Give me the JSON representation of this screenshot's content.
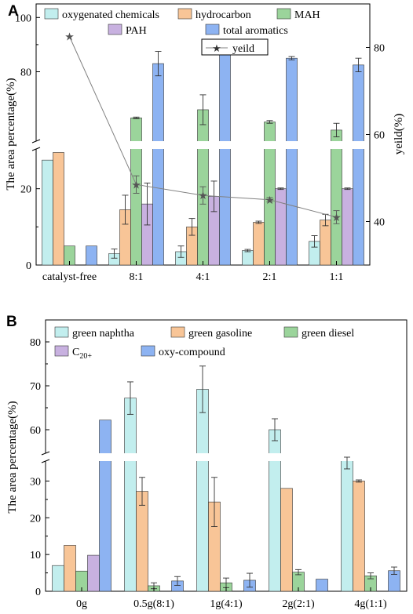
{
  "colors": {
    "oxygenated": "#c2eeee",
    "hydrocarbon": "#f8c597",
    "mah": "#9bd49b",
    "pah": "#c8b1e0",
    "aromatics": "#8db3f2",
    "naphtha": "#c2eeee",
    "gasoline": "#f8c597",
    "diesel": "#9bd49b",
    "c20": "#c8b1e0",
    "oxy": "#8db3f2",
    "yield_line": "#808080"
  },
  "chart_data": [
    {
      "type": "bar",
      "panel_label": "A",
      "ylabel": "The area percentage(%)",
      "y2label": "yeild(%)",
      "categories": [
        "catalyst-free",
        "8:1",
        "4:1",
        "2:1",
        "1:1"
      ],
      "ylim_lower": [
        0,
        30
      ],
      "ylim_upper": [
        55,
        105
      ],
      "yticks": [
        "0",
        "20",
        "80",
        "100"
      ],
      "y2lim": [
        30,
        90
      ],
      "y2ticks": [
        "40",
        "60",
        "80"
      ],
      "series": [
        {
          "name": "oxygenated chemicals",
          "color_key": "oxygenated",
          "values": [
            27.5,
            3.0,
            3.5,
            3.8,
            6.2
          ],
          "errors": [
            0,
            1.2,
            1.5,
            0.3,
            1.5
          ]
        },
        {
          "name": "hydrocarbon",
          "color_key": "hydrocarbon",
          "values": [
            29.5,
            14.5,
            10.0,
            11.2,
            11.8
          ],
          "errors": [
            0,
            3.8,
            2.2,
            0.3,
            1.5
          ]
        },
        {
          "name": "MAH",
          "color_key": "mah",
          "values": [
            5.0,
            63.0,
            66.0,
            61.5,
            58.5
          ],
          "errors": [
            0,
            0.3,
            5.5,
            0.5,
            2.5
          ]
        },
        {
          "name": "PAH",
          "color_key": "pah",
          "values": [
            0,
            16.0,
            18.0,
            20.0,
            20.0
          ],
          "errors": [
            0,
            5.5,
            4.0,
            0.2,
            0.2
          ]
        },
        {
          "name": "total aromatics",
          "color_key": "aromatics",
          "values": [
            5.0,
            83.0,
            87.0,
            85.0,
            82.5
          ],
          "errors": [
            0,
            4.5,
            0.8,
            0.6,
            2.5
          ]
        }
      ],
      "line_series": {
        "name": "yeild",
        "axis": "right",
        "values": [
          82.5,
          48.5,
          46.0,
          45.0,
          41.0
        ],
        "errors": [
          0,
          2.0,
          2.0,
          0.5,
          1.5
        ]
      }
    },
    {
      "type": "bar",
      "panel_label": "B",
      "ylabel": "The area percentage(%)",
      "categories": [
        "0g",
        "0.5g(8:1)",
        "1g(4:1)",
        "2g(2:1)",
        "4g(1:1)"
      ],
      "ylim_lower": [
        0,
        35
      ],
      "ylim_upper": [
        55,
        85
      ],
      "yticks": [
        "0",
        "10",
        "20",
        "30",
        "60",
        "70",
        "80"
      ],
      "series": [
        {
          "name": "green naphtha",
          "color_key": "naphtha",
          "values": [
            7.0,
            67.2,
            69.2,
            60.0,
            35.5
          ],
          "errors": [
            0,
            3.7,
            5.3,
            2.5,
            2.2
          ]
        },
        {
          "name": "green gasoline",
          "color_key": "gasoline",
          "values": [
            12.5,
            27.2,
            24.3,
            28.0,
            30.0
          ],
          "errors": [
            0,
            3.8,
            6.7,
            0,
            0.3
          ]
        },
        {
          "name": "green diesel",
          "color_key": "diesel",
          "values": [
            5.5,
            1.5,
            2.3,
            5.2,
            4.2
          ],
          "errors": [
            0,
            0.8,
            1.3,
            0.7,
            0.8
          ]
        },
        {
          "name": "C20+",
          "name_base": "C",
          "name_sub": "20+",
          "color_key": "c20",
          "values": [
            9.8,
            0,
            0,
            0,
            0
          ],
          "errors": [
            0,
            0,
            0,
            0,
            0
          ]
        },
        {
          "name": "oxy-compound",
          "color_key": "oxy",
          "values": [
            62.2,
            2.8,
            3.0,
            3.3,
            5.6
          ],
          "errors": [
            0,
            1.2,
            1.9,
            0,
            1.0
          ]
        }
      ]
    }
  ]
}
